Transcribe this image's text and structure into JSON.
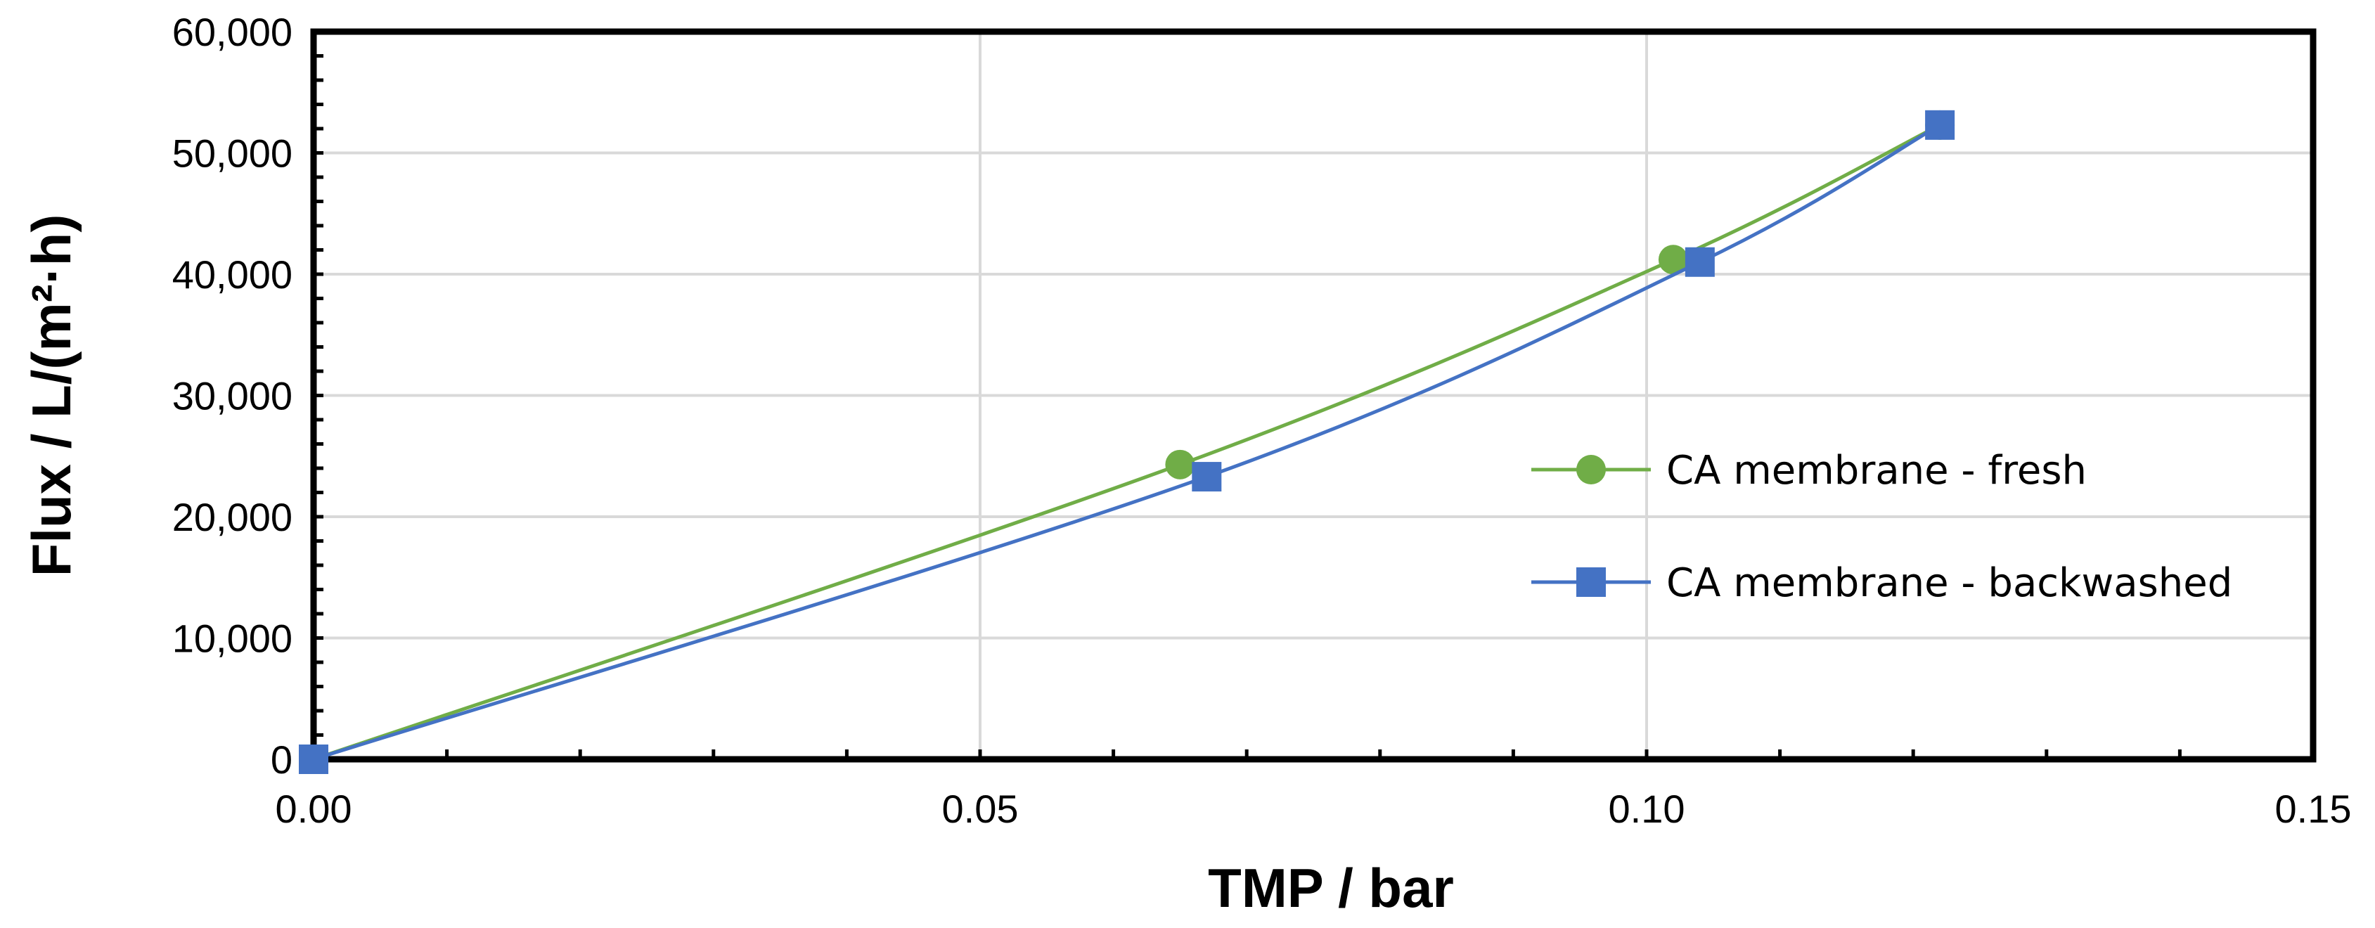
{
  "chart_data": {
    "type": "line",
    "title": "",
    "xlabel": "TMP / bar",
    "ylabel": "Flux / L/(m²·h)",
    "xlim": [
      0,
      0.15
    ],
    "ylim": [
      0,
      60000
    ],
    "x_ticks": [
      "0.00",
      "0.05",
      "0.10",
      "0.15"
    ],
    "y_ticks": [
      "0",
      "10,000",
      "20,000",
      "30,000",
      "40,000",
      "50,000",
      "60,000"
    ],
    "grid": true,
    "legend_position": "right",
    "series": [
      {
        "name": "CA membrane - fresh",
        "color": "#70ad47",
        "marker": "circle",
        "x": [
          0,
          0.065,
          0.102,
          0.122
        ],
        "y": [
          0,
          24300,
          41200,
          52300
        ]
      },
      {
        "name": "CA membrane - backwashed",
        "color": "#4472c4",
        "marker": "square",
        "x": [
          0,
          0.067,
          0.104,
          0.122
        ],
        "y": [
          0,
          23300,
          41000,
          52300
        ]
      }
    ]
  }
}
